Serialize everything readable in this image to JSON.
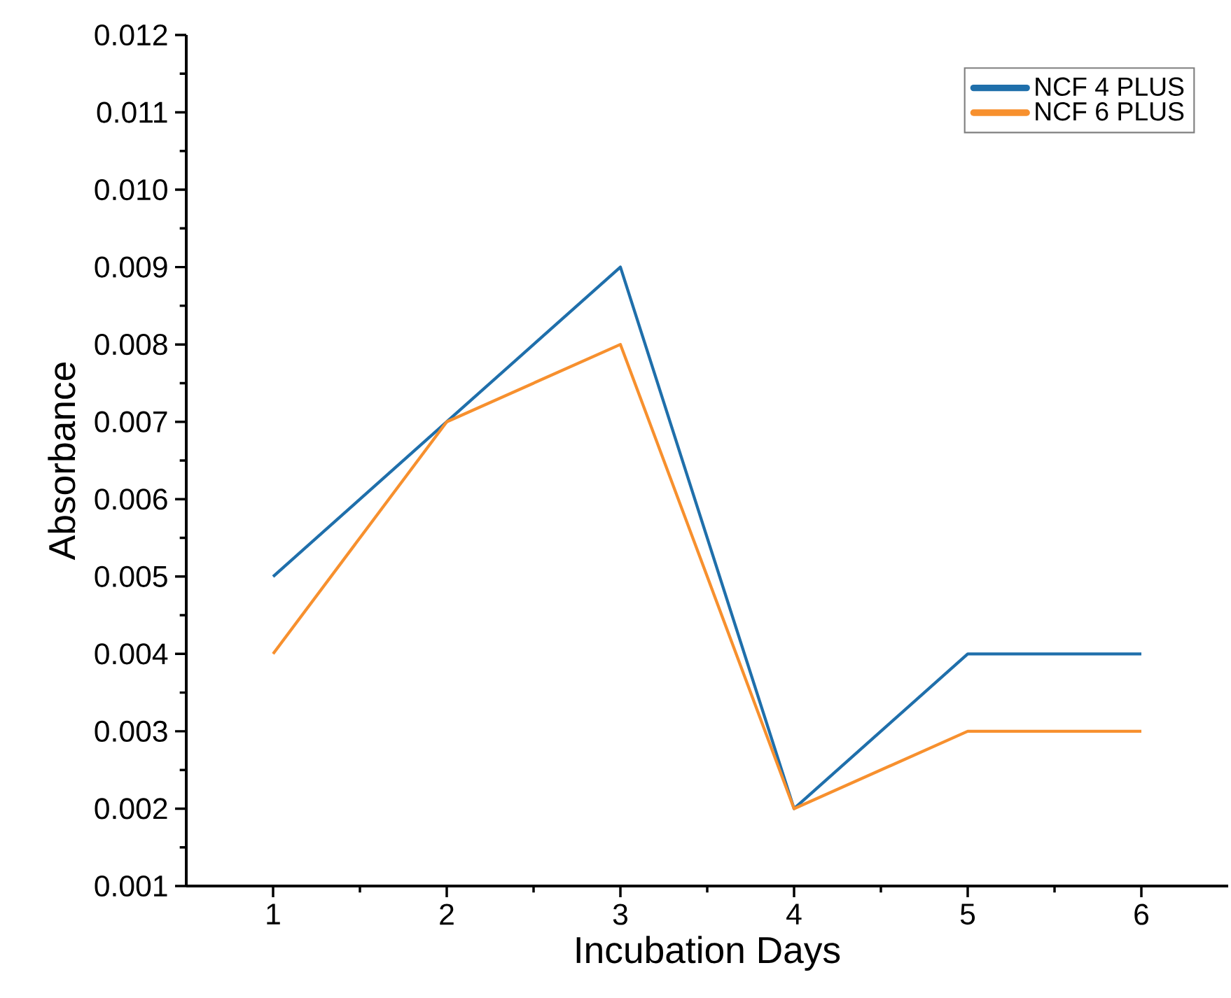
{
  "chart_data": {
    "type": "line",
    "xlabel": "Incubation Days",
    "ylabel": "Absorbance",
    "x": [
      1,
      2,
      3,
      4,
      5,
      6
    ],
    "series": [
      {
        "name": "NCF 4  PLUS",
        "color": "#1f6fab",
        "values": [
          0.005,
          0.007,
          0.009,
          0.002,
          0.004,
          0.004
        ]
      },
      {
        "name": "NCF 6  PLUS",
        "color": "#f7902e",
        "values": [
          0.004,
          0.007,
          0.008,
          0.002,
          0.003,
          0.003
        ]
      }
    ],
    "xlim": [
      0.5,
      6.5
    ],
    "xticks": [
      1,
      2,
      3,
      4,
      5,
      6
    ],
    "ylim": [
      0.001,
      0.012
    ],
    "yticks": [
      {
        "value": 0.001,
        "label": "0.001"
      },
      {
        "value": 0.002,
        "label": "0.002"
      },
      {
        "value": 0.003,
        "label": "0.003"
      },
      {
        "value": 0.004,
        "label": "0.004"
      },
      {
        "value": 0.005,
        "label": "0.005"
      },
      {
        "value": 0.006,
        "label": "0.006"
      },
      {
        "value": 0.007,
        "label": "0.007"
      },
      {
        "value": 0.008,
        "label": "0.008"
      },
      {
        "value": 0.009,
        "label": "0.009"
      },
      {
        "value": 0.01,
        "label": "0.010"
      },
      {
        "value": 0.011,
        "label": "0.011"
      },
      {
        "value": 0.012,
        "label": "0.012"
      }
    ],
    "legend": "top right",
    "marker": "none",
    "line_style": "solid"
  }
}
